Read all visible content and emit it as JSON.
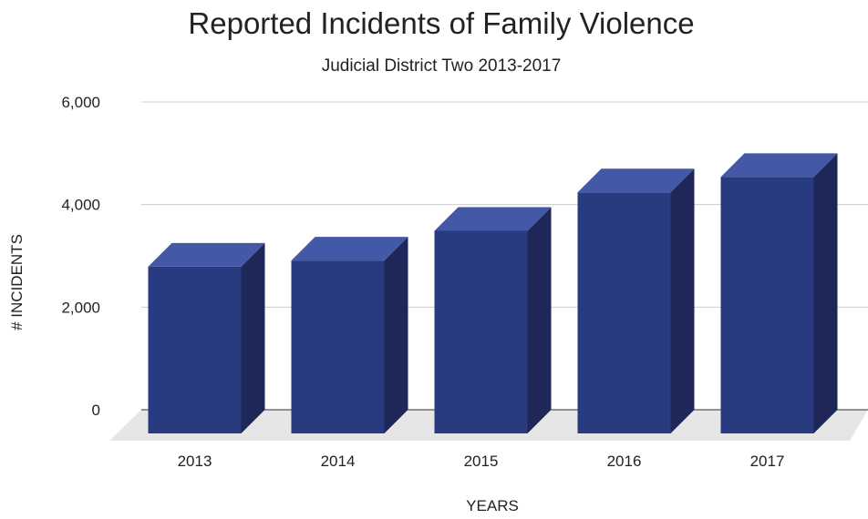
{
  "chart_data": {
    "type": "bar",
    "title": "Reported Incidents of Family Violence",
    "subtitle": "Judicial District Two 2013-2017",
    "xlabel": "YEARS",
    "ylabel": "# INCIDENTS",
    "categories": [
      "2013",
      "2014",
      "2015",
      "2016",
      "2017"
    ],
    "values": [
      3250,
      3370,
      3950,
      4700,
      5000
    ],
    "ylim": [
      0,
      6000
    ],
    "yticks": [
      "0",
      "2,000",
      "4,000",
      "6,000"
    ],
    "ytick_values": [
      0,
      2000,
      4000,
      6000
    ],
    "grid": true,
    "legend": "none",
    "colors": {
      "bar_front": "#283a80",
      "bar_top": "#4458a8",
      "bar_side": "#1f2758",
      "floor": "#e6e6e6",
      "grid": "#cccccc"
    }
  }
}
